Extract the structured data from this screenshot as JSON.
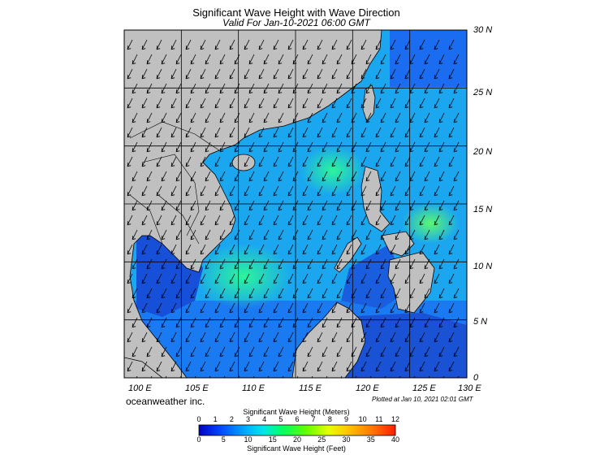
{
  "header": {
    "title": "Significant Wave Height with Wave Direction",
    "subtitle": "Valid For Jan-10-2021 06:00 GMT"
  },
  "map": {
    "lon_labels": [
      "100 E",
      "105 E",
      "110 E",
      "115 E",
      "120 E",
      "125 E",
      "130 E"
    ],
    "lat_labels": [
      "30 N",
      "25 N",
      "20 N",
      "15 N",
      "10 N",
      "5 N",
      "0"
    ],
    "lon_range": [
      100,
      130
    ],
    "lat_range": [
      0,
      30
    ],
    "land_color": "#c0c0c0",
    "coast_color": "#000000",
    "gridline_color": "#000000"
  },
  "footer": {
    "brand": "oceanweather inc.",
    "plotted": "Plotted at Jan 10, 2021 02:01 GMT"
  },
  "colorbar": {
    "title_top": "Significant Wave Height (Meters)",
    "title_bottom": "Significant Wave Height (Feet)",
    "meters": [
      "0",
      "1",
      "2",
      "3",
      "4",
      "5",
      "6",
      "7",
      "8",
      "9",
      "10",
      "11",
      "12"
    ],
    "feet": [
      "0",
      "5",
      "10",
      "15",
      "20",
      "25",
      "30",
      "35",
      "40"
    ],
    "colors": [
      "#0000c8",
      "#0050ff",
      "#00b4ff",
      "#00e6e6",
      "#00ff64",
      "#64ff00",
      "#e6ff00",
      "#ffc800",
      "#ff7800",
      "#ff1e00"
    ]
  }
}
